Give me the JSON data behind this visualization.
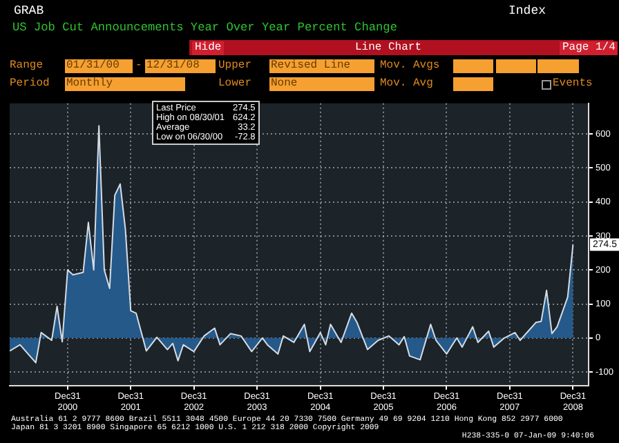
{
  "chart_data": {
    "type": "area",
    "title": "US Job Cut Announcements Year Over Year Percent Change",
    "x": [
      "2000-01-31",
      "2000-03-31",
      "2000-06-30",
      "2000-07-31",
      "2000-09-30",
      "2000-10-31",
      "2000-11-30",
      "2000-12-31",
      "2001-01-31",
      "2001-03-31",
      "2001-04-30",
      "2001-05-31",
      "2001-06-30",
      "2001-07-31",
      "2001-08-31",
      "2001-09-30",
      "2001-10-31",
      "2001-11-30",
      "2001-12-31",
      "2002-01-31",
      "2002-03-31",
      "2002-05-31",
      "2002-07-31",
      "2002-08-31",
      "2002-09-30",
      "2002-10-31",
      "2002-12-31",
      "2003-02-28",
      "2003-04-30",
      "2003-05-31",
      "2003-07-31",
      "2003-09-30",
      "2003-11-30",
      "2004-01-31",
      "2004-02-29",
      "2004-04-30",
      "2004-05-31",
      "2004-07-31",
      "2004-09-30",
      "2004-10-31",
      "2004-11-30",
      "2004-12-31",
      "2005-01-31",
      "2005-02-28",
      "2005-04-30",
      "2005-06-30",
      "2005-07-31",
      "2005-09-30",
      "2005-11-30",
      "2006-01-31",
      "2006-03-31",
      "2006-04-30",
      "2006-05-31",
      "2006-07-31",
      "2006-09-30",
      "2006-10-31",
      "2006-12-31",
      "2007-02-28",
      "2007-03-31",
      "2007-05-31",
      "2007-06-30",
      "2007-08-31",
      "2007-09-30",
      "2007-11-30",
      "2008-01-31",
      "2008-02-29",
      "2008-05-31",
      "2008-06-30",
      "2008-07-31",
      "2008-08-31",
      "2008-09-30",
      "2008-11-30",
      "2008-12-31"
    ],
    "series": [
      {
        "color": "#24598a",
        "values": [
          -38,
          -20,
          -72.8,
          16,
          -7,
          93,
          -11,
          200,
          186,
          193,
          340,
          200,
          624.2,
          200,
          146,
          420,
          453,
          320,
          80,
          73,
          -38,
          2,
          -34,
          -16,
          -67,
          -20,
          -40,
          6,
          29,
          -20,
          13,
          6,
          -40,
          0,
          -20,
          -47,
          6,
          -13,
          40,
          -40,
          -13,
          16,
          -20,
          40,
          -13,
          73,
          46,
          -34,
          -7,
          6,
          -20,
          4,
          -53,
          -64,
          40,
          -7,
          -47,
          0,
          -27,
          33,
          -13,
          20,
          -27,
          0,
          16,
          -7,
          46,
          49,
          140,
          13,
          33,
          120,
          274.5
        ]
      }
    ],
    "xlim": [
      "2000-01-31",
      "2009-03-31"
    ],
    "xticks": [
      {
        "value": "2000-12-31",
        "label": "Dec31 2000"
      },
      {
        "value": "2001-12-31",
        "label": "Dec31 2001"
      },
      {
        "value": "2002-12-31",
        "label": "Dec31 2002"
      },
      {
        "value": "2003-12-31",
        "label": "Dec31 2003"
      },
      {
        "value": "2004-12-31",
        "label": "Dec31 2004"
      },
      {
        "value": "2005-12-31",
        "label": "Dec31 2005"
      },
      {
        "value": "2006-12-31",
        "label": "Dec31 2006"
      },
      {
        "value": "2007-12-31",
        "label": "Dec31 2007"
      },
      {
        "value": "2008-12-31",
        "label": "Dec31 2008"
      }
    ],
    "ylim": [
      -140,
      690
    ],
    "yticks": [
      -100,
      0,
      100,
      200,
      300,
      400,
      500,
      600
    ],
    "grid": true,
    "legend": false,
    "annotations": [
      "GRAB",
      "Index",
      "Hide",
      "Line Chart",
      "Page 1/4",
      "Range",
      "01/31/00",
      "-",
      "12/31/08",
      "Upper",
      "Revised Line",
      "Mov. Avgs",
      "Period",
      "Monthly",
      "Lower",
      "None",
      "Mov. Avg",
      "Events",
      "Last Price",
      "274.5",
      "High on 08/30/01",
      "624.2",
      "Average",
      "33.2",
      "Low on 06/30/00",
      "-72.8",
      "Australia 61 2 9777 8600 Brazil 5511 3048 4500 Europe 44 20 7330 7500 Germany 49 69 9204 1210 Hong Kong 852 2977 6000",
      "Japan 81 3 3201 8900 Singapore 65 6212 1000 U.S. 1 212 318 2000 Copyright 2009",
      "H238-335-0 07-Jan-09 9:40:06",
      {
        "text": "274.5",
        "x": "2008-12-31",
        "y": 274.5
      }
    ]
  }
}
